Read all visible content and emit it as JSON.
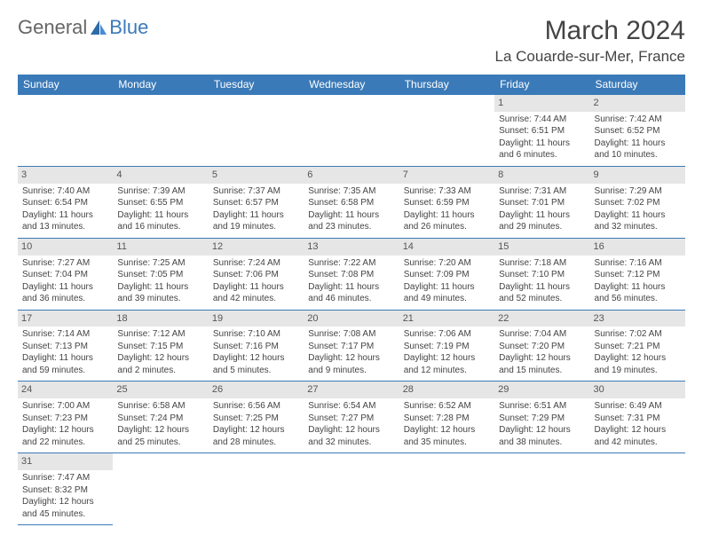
{
  "logo": {
    "textA": "General",
    "textB": "Blue"
  },
  "header": {
    "month": "March 2024",
    "location": "La Couarde-sur-Mer, France"
  },
  "colors": {
    "accent": "#3b7ab8",
    "dayBg": "#e6e6e6",
    "text": "#444444"
  },
  "dayNames": [
    "Sunday",
    "Monday",
    "Tuesday",
    "Wednesday",
    "Thursday",
    "Friday",
    "Saturday"
  ],
  "firstWeekday": 5,
  "daysInMonth": 31,
  "days": {
    "1": {
      "sunrise": "7:44 AM",
      "sunset": "6:51 PM",
      "dlH": 11,
      "dlM": 6
    },
    "2": {
      "sunrise": "7:42 AM",
      "sunset": "6:52 PM",
      "dlH": 11,
      "dlM": 10
    },
    "3": {
      "sunrise": "7:40 AM",
      "sunset": "6:54 PM",
      "dlH": 11,
      "dlM": 13
    },
    "4": {
      "sunrise": "7:39 AM",
      "sunset": "6:55 PM",
      "dlH": 11,
      "dlM": 16
    },
    "5": {
      "sunrise": "7:37 AM",
      "sunset": "6:57 PM",
      "dlH": 11,
      "dlM": 19
    },
    "6": {
      "sunrise": "7:35 AM",
      "sunset": "6:58 PM",
      "dlH": 11,
      "dlM": 23
    },
    "7": {
      "sunrise": "7:33 AM",
      "sunset": "6:59 PM",
      "dlH": 11,
      "dlM": 26
    },
    "8": {
      "sunrise": "7:31 AM",
      "sunset": "7:01 PM",
      "dlH": 11,
      "dlM": 29
    },
    "9": {
      "sunrise": "7:29 AM",
      "sunset": "7:02 PM",
      "dlH": 11,
      "dlM": 32
    },
    "10": {
      "sunrise": "7:27 AM",
      "sunset": "7:04 PM",
      "dlH": 11,
      "dlM": 36
    },
    "11": {
      "sunrise": "7:25 AM",
      "sunset": "7:05 PM",
      "dlH": 11,
      "dlM": 39
    },
    "12": {
      "sunrise": "7:24 AM",
      "sunset": "7:06 PM",
      "dlH": 11,
      "dlM": 42
    },
    "13": {
      "sunrise": "7:22 AM",
      "sunset": "7:08 PM",
      "dlH": 11,
      "dlM": 46
    },
    "14": {
      "sunrise": "7:20 AM",
      "sunset": "7:09 PM",
      "dlH": 11,
      "dlM": 49
    },
    "15": {
      "sunrise": "7:18 AM",
      "sunset": "7:10 PM",
      "dlH": 11,
      "dlM": 52
    },
    "16": {
      "sunrise": "7:16 AM",
      "sunset": "7:12 PM",
      "dlH": 11,
      "dlM": 56
    },
    "17": {
      "sunrise": "7:14 AM",
      "sunset": "7:13 PM",
      "dlH": 11,
      "dlM": 59
    },
    "18": {
      "sunrise": "7:12 AM",
      "sunset": "7:15 PM",
      "dlH": 12,
      "dlM": 2
    },
    "19": {
      "sunrise": "7:10 AM",
      "sunset": "7:16 PM",
      "dlH": 12,
      "dlM": 5
    },
    "20": {
      "sunrise": "7:08 AM",
      "sunset": "7:17 PM",
      "dlH": 12,
      "dlM": 9
    },
    "21": {
      "sunrise": "7:06 AM",
      "sunset": "7:19 PM",
      "dlH": 12,
      "dlM": 12
    },
    "22": {
      "sunrise": "7:04 AM",
      "sunset": "7:20 PM",
      "dlH": 12,
      "dlM": 15
    },
    "23": {
      "sunrise": "7:02 AM",
      "sunset": "7:21 PM",
      "dlH": 12,
      "dlM": 19
    },
    "24": {
      "sunrise": "7:00 AM",
      "sunset": "7:23 PM",
      "dlH": 12,
      "dlM": 22
    },
    "25": {
      "sunrise": "6:58 AM",
      "sunset": "7:24 PM",
      "dlH": 12,
      "dlM": 25
    },
    "26": {
      "sunrise": "6:56 AM",
      "sunset": "7:25 PM",
      "dlH": 12,
      "dlM": 28
    },
    "27": {
      "sunrise": "6:54 AM",
      "sunset": "7:27 PM",
      "dlH": 12,
      "dlM": 32
    },
    "28": {
      "sunrise": "6:52 AM",
      "sunset": "7:28 PM",
      "dlH": 12,
      "dlM": 35
    },
    "29": {
      "sunrise": "6:51 AM",
      "sunset": "7:29 PM",
      "dlH": 12,
      "dlM": 38
    },
    "30": {
      "sunrise": "6:49 AM",
      "sunset": "7:31 PM",
      "dlH": 12,
      "dlM": 42
    },
    "31": {
      "sunrise": "7:47 AM",
      "sunset": "8:32 PM",
      "dlH": 12,
      "dlM": 45
    }
  },
  "labels": {
    "sunrise": "Sunrise:",
    "sunset": "Sunset:",
    "daylight": "Daylight:"
  }
}
